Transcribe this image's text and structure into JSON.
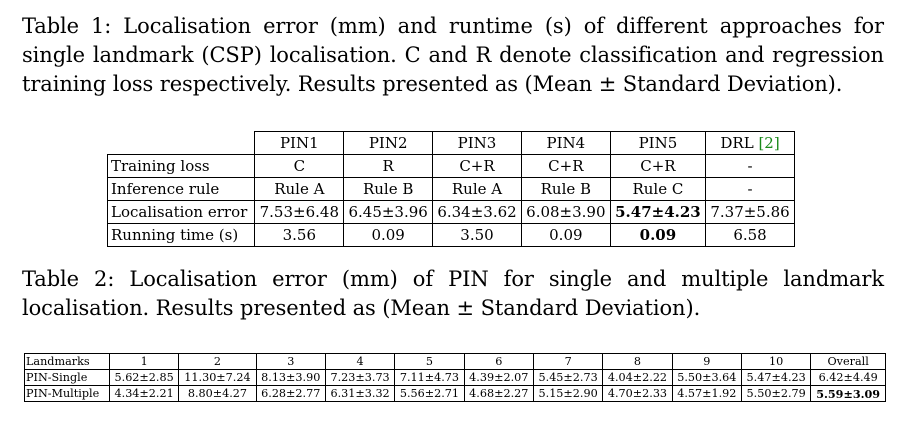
{
  "table1": {
    "caption": "Table 1: Localisation error (mm) and runtime (s) of different approaches for single landmark (CSP) localisation. C and R denote classification and regression training loss respectively. Results presented as (Mean ± Standard Deviation).",
    "headers": [
      "PIN1",
      "PIN2",
      "PIN3",
      "PIN4",
      "PIN5"
    ],
    "drl_label": "DRL ",
    "drl_cite": "[2]",
    "rows": [
      {
        "label": "Training loss",
        "cells": [
          "C",
          "R",
          "C+R",
          "C+R",
          "C+R",
          "-"
        ]
      },
      {
        "label": "Inference rule",
        "cells": [
          "Rule A",
          "Rule B",
          "Rule A",
          "Rule B",
          "Rule C",
          "-"
        ]
      },
      {
        "label": "Localisation error",
        "cells": [
          "7.53±6.48",
          "6.45±3.96",
          "6.34±3.62",
          "6.08±3.90",
          "5.47±4.23",
          "7.37±5.86"
        ]
      },
      {
        "label": "Running time (s)",
        "cells": [
          "3.56",
          "0.09",
          "3.50",
          "0.09",
          "0.09",
          "6.58"
        ]
      }
    ]
  },
  "table2": {
    "caption": "Table 2: Localisation error (mm) of PIN for single and multiple landmark localisation. Results presented as (Mean ± Standard Deviation).",
    "header_label": "Landmarks",
    "headers": [
      "1",
      "2",
      "3",
      "4",
      "5",
      "6",
      "7",
      "8",
      "9",
      "10",
      "Overall"
    ],
    "rows": [
      {
        "label": "PIN-Single",
        "cells": [
          "5.62±2.85",
          "11.30±7.24",
          "8.13±3.90",
          "7.23±3.73",
          "7.11±4.73",
          "4.39±2.07",
          "5.45±2.73",
          "4.04±2.22",
          "5.50±3.64",
          "5.47±4.23",
          "6.42±4.49"
        ]
      },
      {
        "label": "PIN-Multiple",
        "cells": [
          "4.34±2.21",
          "8.80±4.27",
          "6.28±2.77",
          "6.31±3.32",
          "5.56±2.71",
          "4.68±2.27",
          "5.15±2.90",
          "4.70±2.33",
          "4.57±1.92",
          "5.50±2.79",
          "5.59±3.09"
        ]
      }
    ]
  }
}
